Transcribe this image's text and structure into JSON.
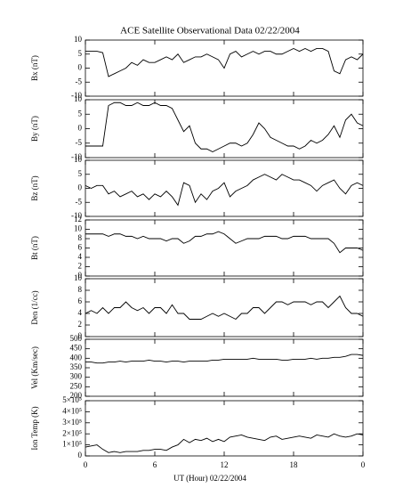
{
  "chart_data": [
    {
      "type": "line",
      "title": "ACE Satellite Observational Data   02/22/2004",
      "ylabel": "Bx (nT)",
      "color": "#000000",
      "x": [
        0,
        0.5,
        1,
        1.5,
        2,
        2.5,
        3,
        3.5,
        4,
        4.5,
        5,
        5.5,
        6,
        6.5,
        7,
        7.5,
        8,
        8.5,
        9,
        9.5,
        10,
        10.5,
        11,
        11.5,
        12,
        12.5,
        13,
        13.5,
        14,
        14.5,
        15,
        15.5,
        16,
        16.5,
        17,
        17.5,
        18,
        18.5,
        19,
        19.5,
        20,
        20.5,
        21,
        21.5,
        22,
        22.5,
        23,
        23.5,
        24
      ],
      "values": [
        6,
        6,
        6,
        5.5,
        -3,
        -2,
        -1,
        0,
        2,
        1,
        3,
        2,
        2,
        3,
        4,
        3,
        5,
        2,
        3,
        4,
        4,
        5,
        4,
        3,
        0,
        5,
        6,
        4,
        5,
        6,
        5,
        6,
        6,
        5,
        5,
        6,
        7,
        6,
        7,
        6,
        7,
        7,
        6,
        -1,
        -2,
        3,
        4,
        3,
        5
      ],
      "xlim": [
        0,
        24
      ],
      "ylim": [
        -10,
        10
      ],
      "yticks": [
        -10,
        -5,
        0,
        5,
        10
      ]
    },
    {
      "type": "line",
      "ylabel": "By (nT)",
      "color": "#000000",
      "x": [
        0,
        0.5,
        1,
        1.5,
        2,
        2.5,
        3,
        3.5,
        4,
        4.5,
        5,
        5.5,
        6,
        6.5,
        7,
        7.5,
        8,
        8.5,
        9,
        9.5,
        10,
        10.5,
        11,
        11.5,
        12,
        12.5,
        13,
        13.5,
        14,
        14.5,
        15,
        15.5,
        16,
        16.5,
        17,
        17.5,
        18,
        18.5,
        19,
        19.5,
        20,
        20.5,
        21,
        21.5,
        22,
        22.5,
        23,
        23.5,
        24
      ],
      "values": [
        -6,
        -6,
        -6,
        -6,
        8,
        9,
        9,
        8,
        8,
        9,
        8,
        8,
        9,
        8,
        8,
        7,
        3,
        -1,
        1,
        -5,
        -7,
        -7,
        -8,
        -7,
        -6,
        -5,
        -5,
        -6,
        -5,
        -2,
        2,
        0,
        -3,
        -4,
        -5,
        -6,
        -6,
        -7,
        -6,
        -4,
        -5,
        -4,
        -2,
        1,
        -3,
        3,
        5,
        2,
        1
      ],
      "xlim": [
        0,
        24
      ],
      "ylim": [
        -10,
        10
      ],
      "yticks": [
        -10,
        -5,
        0,
        5,
        10
      ]
    },
    {
      "type": "line",
      "ylabel": "Bz (nT)",
      "color": "#000000",
      "x": [
        0,
        0.5,
        1,
        1.5,
        2,
        2.5,
        3,
        3.5,
        4,
        4.5,
        5,
        5.5,
        6,
        6.5,
        7,
        7.5,
        8,
        8.5,
        9,
        9.5,
        10,
        10.5,
        11,
        11.5,
        12,
        12.5,
        13,
        13.5,
        14,
        14.5,
        15,
        15.5,
        16,
        16.5,
        17,
        17.5,
        18,
        18.5,
        19,
        19.5,
        20,
        20.5,
        21,
        21.5,
        22,
        22.5,
        23,
        23.5,
        24
      ],
      "values": [
        1,
        0,
        1,
        1,
        -2,
        -1,
        -3,
        -2,
        -1,
        -3,
        -2,
        -4,
        -2,
        -3,
        -1,
        -3,
        -6,
        2,
        1,
        -5,
        -2,
        -4,
        -1,
        0,
        2,
        -3,
        -1,
        0,
        1,
        3,
        4,
        5,
        4,
        3,
        5,
        4,
        3,
        3,
        2,
        1,
        -1,
        1,
        2,
        3,
        0,
        -2,
        1,
        2,
        1
      ],
      "xlim": [
        0,
        24
      ],
      "ylim": [
        -10,
        10
      ],
      "yticks": [
        -10,
        -5,
        0,
        5,
        10
      ]
    },
    {
      "type": "line",
      "ylabel": "Bt (nT)",
      "color": "#000000",
      "x": [
        0,
        0.5,
        1,
        1.5,
        2,
        2.5,
        3,
        3.5,
        4,
        4.5,
        5,
        5.5,
        6,
        6.5,
        7,
        7.5,
        8,
        8.5,
        9,
        9.5,
        10,
        10.5,
        11,
        11.5,
        12,
        12.5,
        13,
        13.5,
        14,
        14.5,
        15,
        15.5,
        16,
        16.5,
        17,
        17.5,
        18,
        18.5,
        19,
        19.5,
        20,
        20.5,
        21,
        21.5,
        22,
        22.5,
        23,
        23.5,
        24
      ],
      "values": [
        9,
        9,
        9,
        9,
        8.5,
        9,
        9,
        8.5,
        8.5,
        8,
        8.5,
        8,
        8,
        8,
        7.5,
        8,
        8,
        7,
        7.5,
        8.5,
        8.5,
        9,
        9,
        9.5,
        9,
        8,
        7,
        7.5,
        8,
        8,
        8,
        8.5,
        8.5,
        8.5,
        8,
        8,
        8.5,
        8.5,
        8.5,
        8,
        8,
        8,
        8,
        7,
        5,
        6,
        6,
        6,
        5.5
      ],
      "xlim": [
        0,
        24
      ],
      "ylim": [
        0,
        12
      ],
      "yticks": [
        0,
        2,
        4,
        6,
        8,
        10,
        12
      ]
    },
    {
      "type": "line",
      "ylabel": "Den (1/cc)",
      "color": "#000000",
      "x": [
        0,
        0.5,
        1,
        1.5,
        2,
        2.5,
        3,
        3.5,
        4,
        4.5,
        5,
        5.5,
        6,
        6.5,
        7,
        7.5,
        8,
        8.5,
        9,
        9.5,
        10,
        10.5,
        11,
        11.5,
        12,
        12.5,
        13,
        13.5,
        14,
        14.5,
        15,
        15.5,
        16,
        16.5,
        17,
        17.5,
        18,
        18.5,
        19,
        19.5,
        20,
        20.5,
        21,
        21.5,
        22,
        22.5,
        23,
        23.5,
        24
      ],
      "values": [
        4,
        4.5,
        4,
        5,
        4,
        5,
        5,
        6,
        5,
        4.5,
        5,
        4,
        5,
        5,
        4,
        5.5,
        4,
        4,
        3,
        3,
        3,
        3.5,
        4,
        3.5,
        4,
        3.5,
        3,
        4,
        4,
        5,
        5,
        4,
        5,
        6,
        6,
        5.5,
        6,
        6,
        6,
        5.5,
        6,
        6,
        5,
        6,
        7,
        5,
        4,
        4,
        3.5
      ],
      "xlim": [
        0,
        24
      ],
      "ylim": [
        0,
        10
      ],
      "yticks": [
        0,
        2,
        4,
        6,
        8,
        10
      ]
    },
    {
      "type": "line",
      "ylabel": "Vel (Km/sec)",
      "color": "#000000",
      "x": [
        0,
        0.5,
        1,
        1.5,
        2,
        2.5,
        3,
        3.5,
        4,
        4.5,
        5,
        5.5,
        6,
        6.5,
        7,
        7.5,
        8,
        8.5,
        9,
        9.5,
        10,
        10.5,
        11,
        11.5,
        12,
        12.5,
        13,
        13.5,
        14,
        14.5,
        15,
        15.5,
        16,
        16.5,
        17,
        17.5,
        18,
        18.5,
        19,
        19.5,
        20,
        20.5,
        21,
        21.5,
        22,
        22.5,
        23,
        23.5,
        24
      ],
      "values": [
        380,
        380,
        375,
        375,
        380,
        380,
        385,
        380,
        385,
        385,
        385,
        390,
        385,
        385,
        380,
        385,
        385,
        380,
        385,
        385,
        385,
        385,
        390,
        390,
        395,
        395,
        395,
        395,
        395,
        400,
        395,
        395,
        395,
        395,
        390,
        390,
        395,
        395,
        395,
        400,
        395,
        400,
        400,
        405,
        405,
        410,
        420,
        420,
        415
      ],
      "xlim": [
        0,
        24
      ],
      "ylim": [
        200,
        500
      ],
      "yticks": [
        200,
        250,
        300,
        350,
        400,
        450,
        500
      ]
    },
    {
      "type": "line",
      "ylabel": "Ion Temp (K)",
      "xlabel": "UT (Hour)   02/22/2004",
      "color": "#000000",
      "x": [
        0,
        0.5,
        1,
        1.5,
        2,
        2.5,
        3,
        3.5,
        4,
        4.5,
        5,
        5.5,
        6,
        6.5,
        7,
        7.5,
        8,
        8.5,
        9,
        9.5,
        10,
        10.5,
        11,
        11.5,
        12,
        12.5,
        13,
        13.5,
        14,
        14.5,
        15,
        15.5,
        16,
        16.5,
        17,
        17.5,
        18,
        18.5,
        19,
        19.5,
        20,
        20.5,
        21,
        21.5,
        22,
        22.5,
        23,
        23.5,
        24
      ],
      "values": [
        80000,
        90000,
        100000,
        60000,
        30000,
        40000,
        30000,
        40000,
        40000,
        40000,
        50000,
        50000,
        60000,
        60000,
        50000,
        80000,
        100000,
        150000,
        120000,
        150000,
        140000,
        160000,
        130000,
        150000,
        130000,
        170000,
        180000,
        190000,
        170000,
        160000,
        150000,
        140000,
        170000,
        180000,
        150000,
        160000,
        170000,
        180000,
        170000,
        160000,
        190000,
        180000,
        170000,
        200000,
        180000,
        170000,
        180000,
        200000,
        190000
      ],
      "xlim": [
        0,
        24
      ],
      "ylim": [
        0,
        500000
      ],
      "yticks": [
        0,
        {
          "value": 100000,
          "label": "1×10⁵"
        },
        {
          "value": 200000,
          "label": "2×10⁵"
        },
        {
          "value": 300000,
          "label": "3×10⁵"
        },
        {
          "value": 400000,
          "label": "4×10⁵"
        },
        {
          "value": 500000,
          "label": "5×10⁵"
        }
      ],
      "xticks": [
        0,
        6,
        12,
        18,
        {
          "value": 24,
          "label": "0"
        }
      ]
    }
  ]
}
